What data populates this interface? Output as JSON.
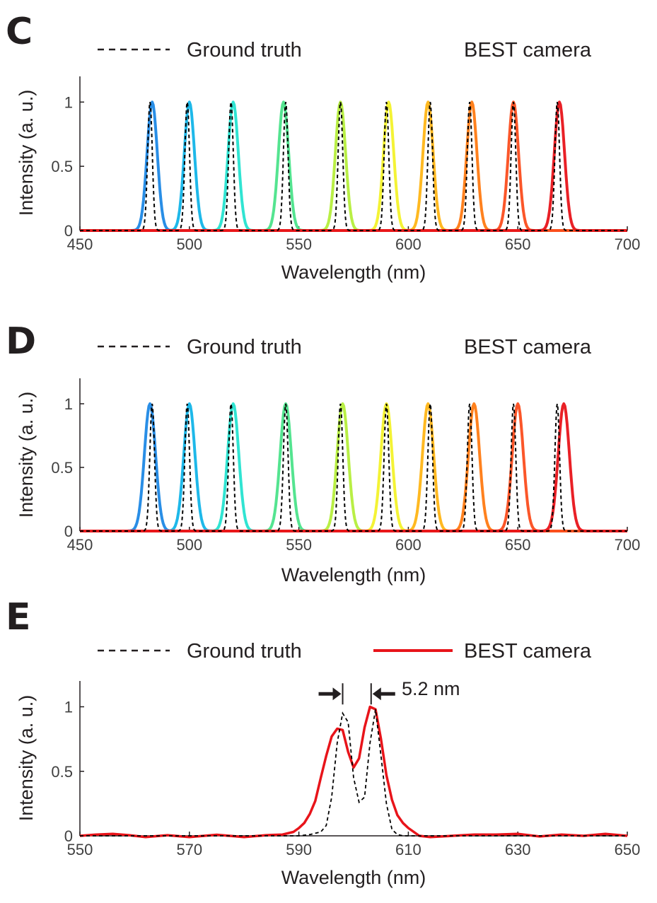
{
  "chart_data": [
    {
      "panel": "C",
      "type": "line",
      "xlabel": "Wavelength (nm)",
      "ylabel": "Intensity (a. u.)",
      "xlim": [
        450,
        700
      ],
      "ylim": [
        0,
        1.2
      ],
      "xticks": [
        450,
        500,
        550,
        600,
        650,
        700
      ],
      "yticks": [
        0,
        0.5,
        1
      ],
      "ytick_labels": [
        "0",
        "0.5",
        "1"
      ],
      "legend": {
        "ground_truth": "Ground truth",
        "best_camera": "BEST camera"
      },
      "series": [
        {
          "name": "Ground truth",
          "style": "dashed",
          "color": "#000000",
          "peaks": [
            482,
            499,
            519,
            544,
            569,
            590,
            610,
            628,
            648,
            668
          ],
          "fwhm": 2.5
        },
        {
          "name": "BEST camera",
          "style": "solid",
          "gradient": true,
          "peaks": [
            483,
            500,
            520,
            543,
            569,
            591,
            609,
            629,
            648,
            669
          ],
          "colors": [
            "#1e88e5",
            "#12b4e8",
            "#25e3d0",
            "#4be38a",
            "#b5ee3b",
            "#f3f22a",
            "#ffb515",
            "#ff7a12",
            "#fb4d1e",
            "#e8141a"
          ],
          "fwhm": 5.5
        }
      ]
    },
    {
      "panel": "D",
      "type": "line",
      "xlabel": "Wavelength (nm)",
      "ylabel": "Intensity (a. u.)",
      "xlim": [
        450,
        700
      ],
      "ylim": [
        0,
        1.2
      ],
      "xticks": [
        450,
        500,
        550,
        600,
        650,
        700
      ],
      "yticks": [
        0,
        0.5,
        1
      ],
      "ytick_labels": [
        "0",
        "0.5",
        "1"
      ],
      "legend": {
        "ground_truth": "Ground truth",
        "best_camera": "BEST camera"
      },
      "series": [
        {
          "name": "Ground truth",
          "style": "dashed",
          "color": "#000000",
          "peaks": [
            483,
            499,
            519,
            544,
            569,
            590,
            610,
            628,
            648,
            668
          ],
          "fwhm": 2.5
        },
        {
          "name": "BEST camera",
          "style": "solid",
          "gradient": true,
          "peaks": [
            482,
            500,
            520,
            544,
            570,
            590,
            609,
            630,
            650,
            671
          ],
          "colors": [
            "#1e88e5",
            "#12b4e8",
            "#25e3d0",
            "#4be38a",
            "#b5ee3b",
            "#f3f22a",
            "#ffb515",
            "#ff7a12",
            "#fb4d1e",
            "#e8141a"
          ],
          "fwhm": 6
        }
      ]
    },
    {
      "panel": "E",
      "type": "line",
      "xlabel": "Wavelength (nm)",
      "ylabel": "Intensity (a. u.)",
      "xlim": [
        550,
        650
      ],
      "ylim": [
        0,
        1.2
      ],
      "xticks": [
        550,
        570,
        590,
        610,
        630,
        650
      ],
      "yticks": [
        0,
        0.5,
        1
      ],
      "ytick_labels": [
        "0",
        "0.5",
        "1"
      ],
      "legend": {
        "ground_truth": "Ground truth",
        "best_camera": "BEST camera"
      },
      "annotation": {
        "text": "5.2 nm",
        "from": 598,
        "to": 603.2,
        "y": 1.1
      },
      "series": [
        {
          "name": "Ground truth",
          "style": "dashed",
          "color": "#000000",
          "x": [
            550,
            590,
            592,
            594,
            595,
            596,
            597,
            598,
            599,
            600,
            601,
            602,
            603,
            604,
            605,
            606,
            607,
            608,
            609,
            611,
            650
          ],
          "y": [
            0,
            0,
            0.01,
            0.03,
            0.08,
            0.3,
            0.72,
            0.95,
            0.88,
            0.45,
            0.26,
            0.3,
            0.72,
            0.98,
            0.62,
            0.25,
            0.05,
            0.01,
            0,
            0,
            0
          ]
        },
        {
          "name": "BEST camera",
          "style": "solid",
          "color": "#e8141a",
          "x": [
            550,
            553,
            556,
            559,
            562,
            566,
            570,
            575,
            580,
            584,
            587,
            589,
            590,
            591,
            592,
            593,
            594,
            595,
            596,
            597,
            598,
            599,
            600,
            601,
            602,
            603,
            604,
            605,
            606,
            607,
            608,
            609,
            610,
            612,
            614,
            618,
            622,
            626,
            630,
            634,
            638,
            642,
            646,
            650
          ],
          "y": [
            0,
            0.01,
            0.015,
            0.005,
            -0.01,
            0.005,
            -0.01,
            0.008,
            -0.01,
            0.005,
            0.01,
            0.03,
            0.06,
            0.1,
            0.17,
            0.27,
            0.45,
            0.62,
            0.77,
            0.83,
            0.82,
            0.65,
            0.53,
            0.6,
            0.84,
            1.0,
            0.98,
            0.75,
            0.47,
            0.28,
            0.16,
            0.1,
            0.06,
            0.0,
            -0.01,
            0.0,
            0.01,
            0.01,
            0.015,
            -0.005,
            0.01,
            0.0,
            0.015,
            0.0
          ]
        }
      ]
    }
  ]
}
